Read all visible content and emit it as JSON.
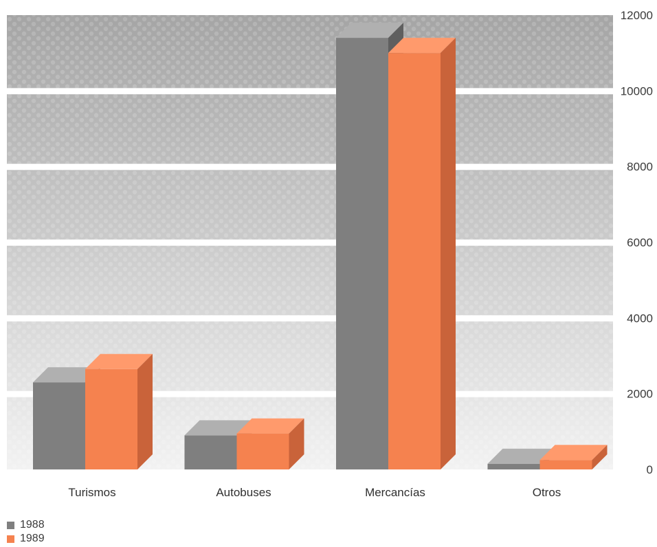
{
  "chart_data": {
    "type": "bar",
    "categories": [
      "Turismos",
      "Autobuses",
      "Mercancías",
      "Otros"
    ],
    "series": [
      {
        "name": "1988",
        "values": [
          2300,
          900,
          11400,
          150
        ]
      },
      {
        "name": "1989",
        "values": [
          2650,
          950,
          11000,
          250
        ]
      }
    ],
    "y_ticks": [
      "0",
      "2000",
      "4000",
      "6000",
      "8000",
      "10000",
      "12000"
    ],
    "ylim": [
      0,
      12000
    ],
    "grid": true,
    "legend_position": "bottom-left",
    "colors": {
      "1988": "#7f7f7f",
      "1989": "#f5824f"
    }
  }
}
